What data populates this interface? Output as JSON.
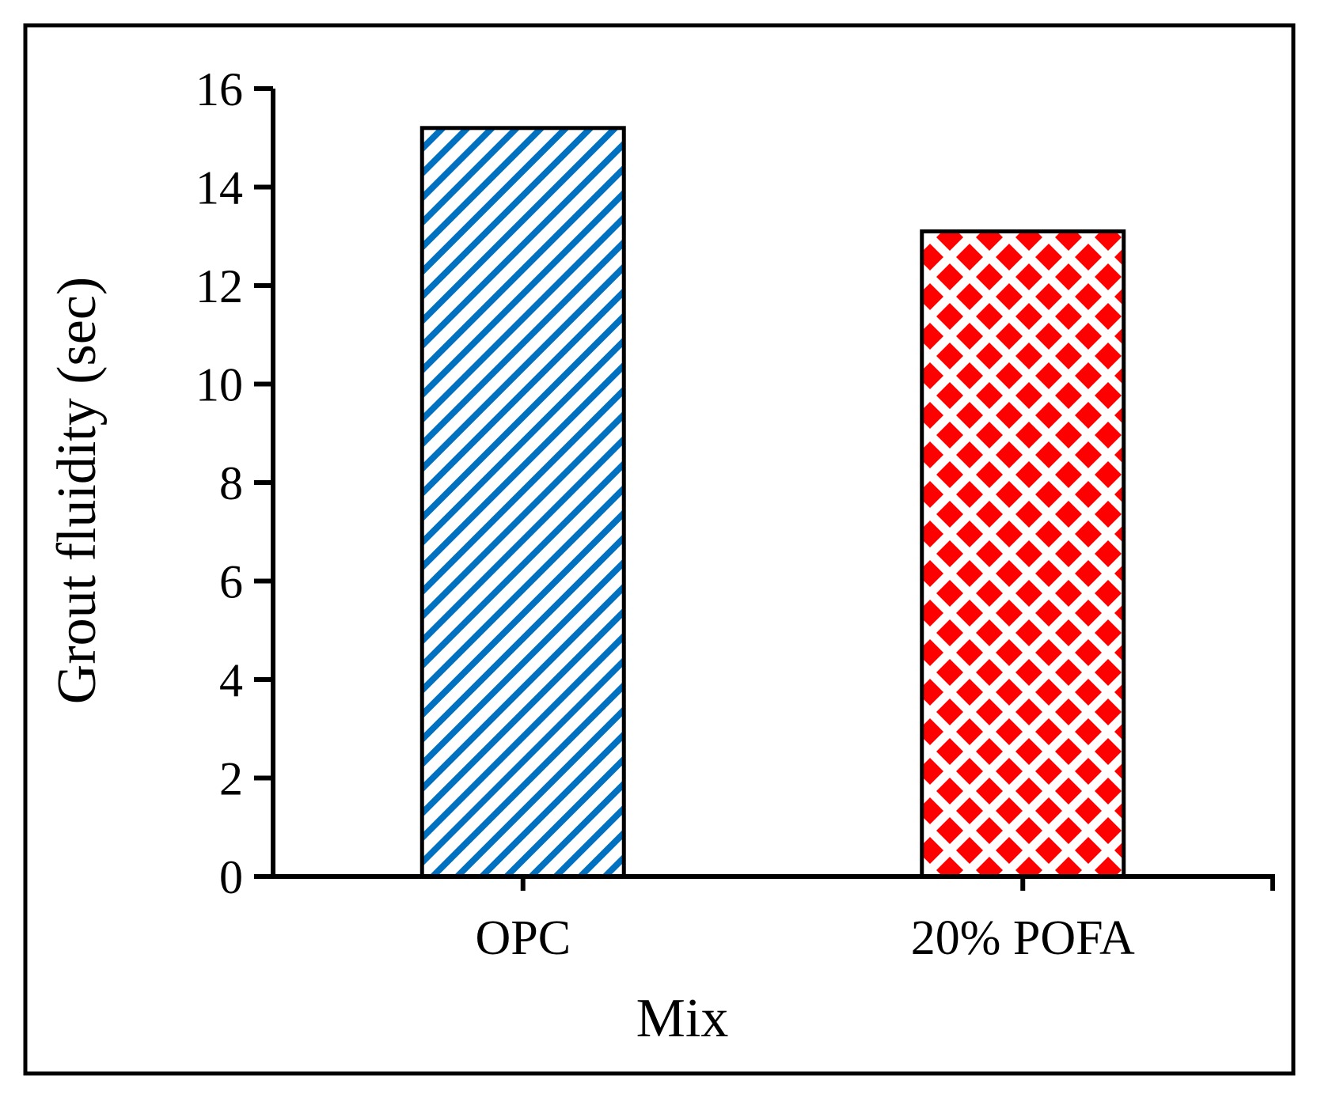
{
  "chart_data": {
    "type": "bar",
    "title": "",
    "xlabel": "Mix",
    "ylabel": "Grout fluidity (sec)",
    "categories": [
      "OPC",
      "20% POFA"
    ],
    "values": [
      15.2,
      13.1
    ],
    "ylim": [
      0,
      16
    ],
    "yticks": [
      0,
      2,
      4,
      6,
      8,
      10,
      12,
      14,
      16
    ],
    "grid": false,
    "legend": "none",
    "bar_patterns": [
      "diagonal-stripes",
      "diamond-dots"
    ],
    "colors": {
      "opc_pattern": "#0070C0",
      "pofa_pattern": "#FF0000",
      "axis": "#000000",
      "background": "#FFFFFF"
    }
  }
}
